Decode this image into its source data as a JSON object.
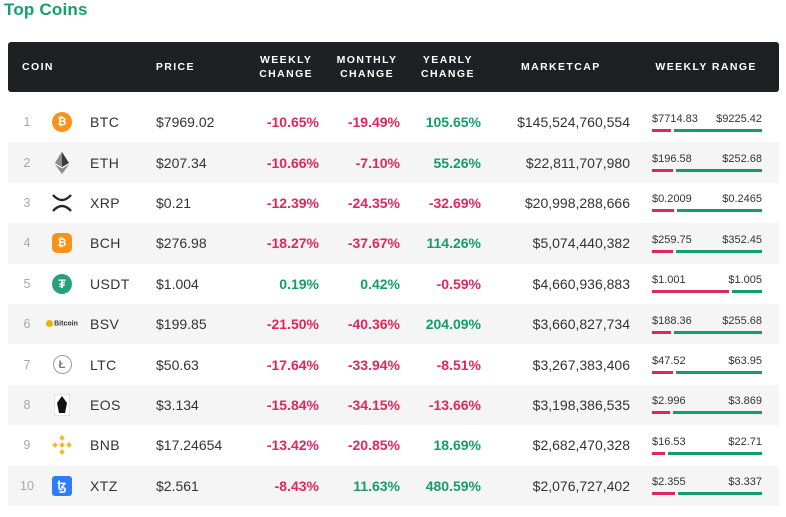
{
  "title": "Top Coins",
  "headers": {
    "coin": "COIN",
    "price": "PRICE",
    "weekly": "WEEKLY\nCHANGE",
    "monthly": "MONTHLY\nCHANGE",
    "yearly": "YEARLY\nCHANGE",
    "marketcap": "MARKETCAP",
    "range": "WEEKLY RANGE"
  },
  "colors": {
    "positive": "#159c6b",
    "negative": "#e0265f",
    "header_bg": "#1f2023",
    "title": "#14a06e"
  },
  "coins": [
    {
      "rank": "1",
      "icon": "bitcoin-icon",
      "symbol": "BTC",
      "price": "$7969.02",
      "weekly": "-10.65%",
      "monthly": "-19.49%",
      "yearly": "105.65%",
      "marketcap": "$145,524,760,554",
      "range_low": "$7714.83",
      "range_high": "$9225.42",
      "range_pos": 0.17
    },
    {
      "rank": "2",
      "icon": "ethereum-icon",
      "symbol": "ETH",
      "price": "$207.34",
      "weekly": "-10.66%",
      "monthly": "-7.10%",
      "yearly": "55.26%",
      "marketcap": "$22,811,707,980",
      "range_low": "$196.58",
      "range_high": "$252.68",
      "range_pos": 0.19
    },
    {
      "rank": "3",
      "icon": "xrp-icon",
      "symbol": "XRP",
      "price": "$0.21",
      "weekly": "-12.39%",
      "monthly": "-24.35%",
      "yearly": "-32.69%",
      "marketcap": "$20,998,288,666",
      "range_low": "$0.2009",
      "range_high": "$0.2465",
      "range_pos": 0.2
    },
    {
      "rank": "4",
      "icon": "bitcoin-cash-icon",
      "symbol": "BCH",
      "price": "$276.98",
      "weekly": "-18.27%",
      "monthly": "-37.67%",
      "yearly": "114.26%",
      "marketcap": "$5,074,440,382",
      "range_low": "$259.75",
      "range_high": "$352.45",
      "range_pos": 0.19
    },
    {
      "rank": "5",
      "icon": "tether-icon",
      "symbol": "USDT",
      "price": "$1.004",
      "weekly": "0.19%",
      "monthly": "0.42%",
      "yearly": "-0.59%",
      "marketcap": "$4,660,936,883",
      "range_low": "$1.001",
      "range_high": "$1.005",
      "range_pos": 0.7
    },
    {
      "rank": "6",
      "icon": "bitcoin-sv-icon",
      "symbol": "BSV",
      "price": "$199.85",
      "weekly": "-21.50%",
      "monthly": "-40.36%",
      "yearly": "204.09%",
      "marketcap": "$3,660,827,734",
      "range_low": "$188.36",
      "range_high": "$255.68",
      "range_pos": 0.17
    },
    {
      "rank": "7",
      "icon": "litecoin-icon",
      "symbol": "LTC",
      "price": "$50.63",
      "weekly": "-17.64%",
      "monthly": "-33.94%",
      "yearly": "-8.51%",
      "marketcap": "$3,267,383,406",
      "range_low": "$47.52",
      "range_high": "$63.95",
      "range_pos": 0.19
    },
    {
      "rank": "8",
      "icon": "eos-icon",
      "symbol": "EOS",
      "price": "$3.134",
      "weekly": "-15.84%",
      "monthly": "-34.15%",
      "yearly": "-13.66%",
      "marketcap": "$3,198,386,535",
      "range_low": "$2.996",
      "range_high": "$3.869",
      "range_pos": 0.16
    },
    {
      "rank": "9",
      "icon": "binance-coin-icon",
      "symbol": "BNB",
      "price": "$17.24654",
      "weekly": "-13.42%",
      "monthly": "-20.85%",
      "yearly": "18.69%",
      "marketcap": "$2,682,470,328",
      "range_low": "$16.53",
      "range_high": "$22.71",
      "range_pos": 0.12
    },
    {
      "rank": "10",
      "icon": "tezos-icon",
      "symbol": "XTZ",
      "price": "$2.561",
      "weekly": "-8.43%",
      "monthly": "11.63%",
      "yearly": "480.59%",
      "marketcap": "$2,076,727,402",
      "range_low": "$2.355",
      "range_high": "$3.337",
      "range_pos": 0.21
    }
  ]
}
